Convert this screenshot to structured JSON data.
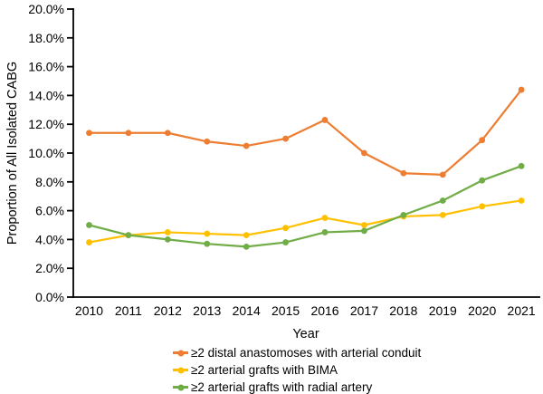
{
  "chart_data": {
    "type": "line",
    "title": "",
    "xlabel": "Year",
    "ylabel": "Proportion of All Isolated CABG",
    "x_categories": [
      "2010",
      "2011",
      "2012",
      "2013",
      "2014",
      "2015",
      "2016",
      "2017",
      "2018",
      "2019",
      "2020",
      "2021"
    ],
    "ylim": [
      0,
      20
    ],
    "ytick_step": 2,
    "ytick_labels": [
      "0.0%",
      "2.0%",
      "4.0%",
      "6.0%",
      "8.0%",
      "10.0%",
      "12.0%",
      "14.0%",
      "16.0%",
      "18.0%",
      "20.0%"
    ],
    "grid": false,
    "legend_position": "bottom",
    "axis_color": "#000000",
    "background_color": "#ffffff",
    "series": [
      {
        "name": "≥2 distal anastomoses with arterial conduit",
        "color": "#ED7D31",
        "values": [
          11.4,
          11.4,
          11.4,
          10.8,
          10.5,
          11.0,
          12.3,
          10.0,
          8.6,
          8.5,
          10.9,
          14.4
        ]
      },
      {
        "name": "≥2 arterial grafts with BIMA",
        "color": "#FFC000",
        "values": [
          3.8,
          4.3,
          4.5,
          4.4,
          4.3,
          4.8,
          5.5,
          5.0,
          5.6,
          5.7,
          6.3,
          6.7
        ]
      },
      {
        "name": "≥2 arterial grafts with radial artery",
        "color": "#70AD47",
        "values": [
          5.0,
          4.3,
          4.0,
          3.7,
          3.5,
          3.8,
          4.5,
          4.6,
          5.7,
          6.7,
          8.1,
          9.1
        ]
      }
    ]
  }
}
